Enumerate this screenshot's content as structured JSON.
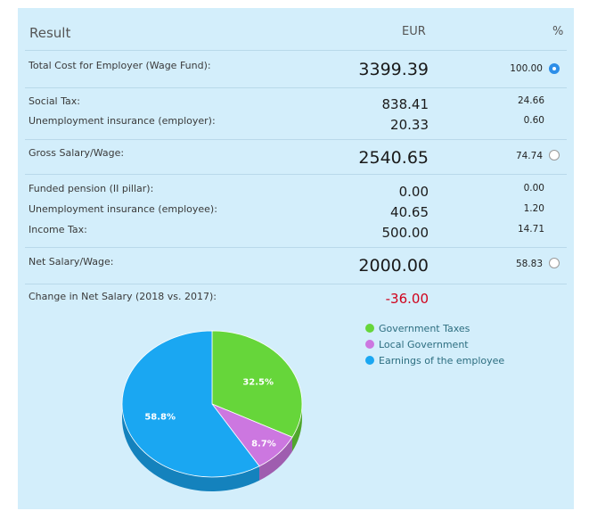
{
  "header": {
    "title": "Result",
    "currency": "EUR",
    "percent": "%"
  },
  "rows": {
    "total_cost": {
      "label": "Total Cost for Employer (Wage Fund):",
      "value": "3399.39",
      "pct": "100.00",
      "selected": true
    },
    "social_tax": {
      "label": "Social Tax:",
      "value": "838.41",
      "pct": "24.66"
    },
    "unemp_employer": {
      "label": "Unemployment insurance (employer):",
      "value": "20.33",
      "pct": "0.60"
    },
    "gross": {
      "label": "Gross Salary/Wage:",
      "value": "2540.65",
      "pct": "74.74",
      "selected": false
    },
    "funded_pension": {
      "label": "Funded pension (II pillar):",
      "value": "0.00",
      "pct": "0.00"
    },
    "unemp_employee": {
      "label": "Unemployment insurance (employee):",
      "value": "40.65",
      "pct": "1.20"
    },
    "income_tax": {
      "label": "Income Tax:",
      "value": "500.00",
      "pct": "14.71"
    },
    "net": {
      "label": "Net Salary/Wage:",
      "value": "2000.00",
      "pct": "58.83",
      "selected": false
    },
    "change": {
      "label": "Change in Net Salary (2018 vs. 2017):",
      "value": "-36.00"
    }
  },
  "chart_data": {
    "type": "pie",
    "slices": [
      {
        "name": "Government Taxes",
        "value": 32.5,
        "label": "32.5%",
        "color": "#66d63a"
      },
      {
        "name": "Local Government",
        "value": 8.7,
        "label": "8.7%",
        "color": "#cc77e0"
      },
      {
        "name": "Earnings of the employee",
        "value": 58.8,
        "label": "58.8%",
        "color": "#1aa7f2"
      }
    ],
    "legend_position": "right"
  }
}
